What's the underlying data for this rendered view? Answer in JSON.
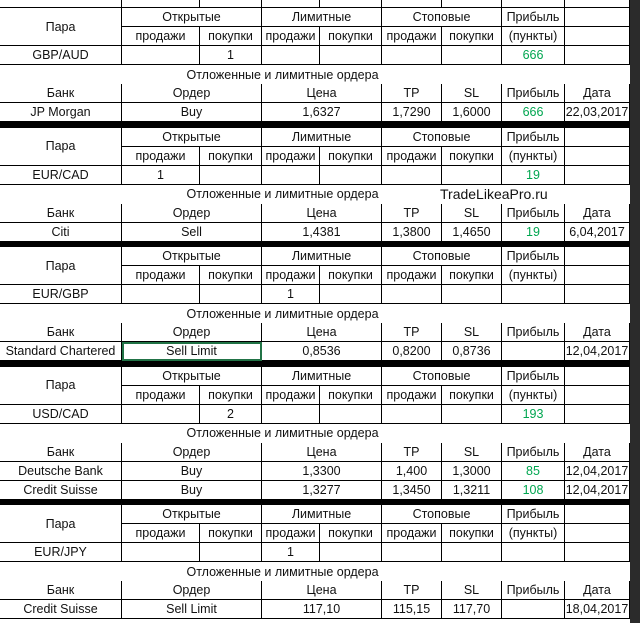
{
  "labels": {
    "pair": "Пара",
    "open": "Открытые",
    "limit": "Лимитные",
    "stop": "Стоповые",
    "profit": "Прибыль",
    "sell": "продажи",
    "buy": "покупки",
    "points": "(пункты)",
    "section": "Отложенные и лимитные ордера",
    "bank": "Банк",
    "order": "Ордер",
    "price": "Цена",
    "tp": "TP",
    "sl": "SL",
    "date": "Дата"
  },
  "watermark": "TradeLikeaPro.ru",
  "blocks": [
    {
      "pair": "GBP/AUD",
      "positions": [
        null,
        "1",
        null,
        null,
        null,
        null
      ],
      "profit": "666",
      "orders": [
        {
          "bank": "JP Morgan",
          "order": "Buy",
          "price": "1,6327",
          "tp": "1,7290",
          "sl": "1,6000",
          "profit": "666",
          "date": "22,03,2017"
        }
      ]
    },
    {
      "pair": "EUR/CAD",
      "positions": [
        "1",
        null,
        null,
        null,
        null,
        null
      ],
      "profit": "19",
      "orders": [
        {
          "bank": "Citi",
          "order": "Sell",
          "price": "1,4381",
          "tp": "1,3800",
          "sl": "1,4650",
          "profit": "19",
          "date": "6,04,2017"
        }
      ]
    },
    {
      "pair": "EUR/GBP",
      "positions": [
        null,
        null,
        "1",
        null,
        null,
        null
      ],
      "profit": null,
      "orders": [
        {
          "bank": "Standard Chartered",
          "order": "Sell Limit",
          "price": "0,8536",
          "tp": "0,8200",
          "sl": "0,8736",
          "profit": null,
          "date": "12,04,2017"
        }
      ]
    },
    {
      "pair": "USD/CAD",
      "positions": [
        null,
        "2",
        null,
        null,
        null,
        null
      ],
      "profit": "193",
      "orders": [
        {
          "bank": "Deutsche Bank",
          "order": "Buy",
          "price": "1,3300",
          "tp": "1,400",
          "sl": "1,3000",
          "profit": "85",
          "date": "12,04,2017"
        },
        {
          "bank": "Credit Suisse",
          "order": "Buy",
          "price": "1,3277",
          "tp": "1,3450",
          "sl": "1,3211",
          "profit": "108",
          "date": "12,04,2017"
        }
      ]
    },
    {
      "pair": "EUR/JPY",
      "positions": [
        null,
        null,
        "1",
        null,
        null,
        null
      ],
      "profit": null,
      "orders": [
        {
          "bank": "Credit Suisse",
          "order": "Sell Limit",
          "price": "117,10",
          "tp": "115,15",
          "sl": "117,70",
          "profit": null,
          "date": "18,04,2017"
        }
      ]
    }
  ]
}
